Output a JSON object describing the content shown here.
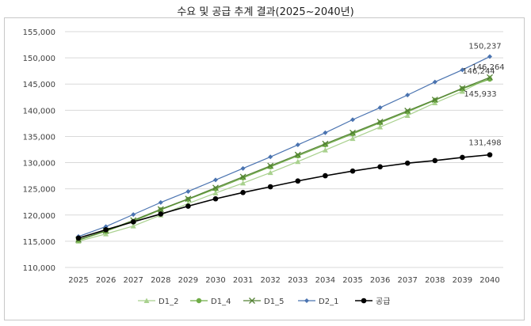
{
  "chart_data": {
    "type": "line",
    "title": "수요 및 공급 추계 결과(2025~2040년)",
    "xlabel": "",
    "ylabel": "",
    "ylim": [
      110000,
      155000
    ],
    "ytick_step": 5000,
    "ytick_labels": [
      "110,000",
      "115,000",
      "120,000",
      "125,000",
      "130,000",
      "135,000",
      "140,000",
      "145,000",
      "150,000",
      "155,000"
    ],
    "grid": true,
    "legend_position": "bottom",
    "categories": [
      "2025",
      "2026",
      "2027",
      "2028",
      "2029",
      "2030",
      "2031",
      "2032",
      "2033",
      "2034",
      "2035",
      "2036",
      "2037",
      "2038",
      "2039",
      "2040"
    ],
    "series": [
      {
        "name": "D1_2",
        "color": "#a9d18e",
        "marker": "triangle",
        "values": [
          115000,
          116400,
          117900,
          120000,
          122200,
          124200,
          126100,
          128100,
          130200,
          132400,
          134600,
          136800,
          139000,
          141400,
          143600,
          146244
        ]
      },
      {
        "name": "D1_4",
        "color": "#70ad47",
        "marker": "circle",
        "values": [
          115200,
          116900,
          118800,
          121000,
          123000,
          125000,
          127100,
          129200,
          131300,
          133400,
          135500,
          137600,
          139700,
          141900,
          144100,
          145933
        ]
      },
      {
        "name": "D1_5",
        "color": "#548235",
        "marker": "x",
        "values": [
          115300,
          117000,
          119000,
          121100,
          123100,
          125200,
          127300,
          129400,
          131500,
          133600,
          135700,
          137800,
          139900,
          142000,
          144200,
          146264
        ]
      },
      {
        "name": "D2_1",
        "color": "#4a73b0",
        "marker": "diamond",
        "values": [
          115900,
          117800,
          120100,
          122400,
          124500,
          126700,
          128900,
          131100,
          133400,
          135700,
          138200,
          140500,
          142900,
          145400,
          147700,
          150237
        ]
      },
      {
        "name": "공급",
        "color": "#000000",
        "marker": "dot",
        "values": [
          115600,
          117200,
          118700,
          120200,
          121700,
          123100,
          124300,
          125400,
          126500,
          127500,
          128400,
          129200,
          129900,
          130400,
          131000,
          131498
        ]
      }
    ],
    "annotations": [
      {
        "series": "D2_1",
        "index": 15,
        "text": "150,237"
      },
      {
        "series": "D1_5",
        "index": 15,
        "text": "146,264"
      },
      {
        "series": "D1_2",
        "index": 15,
        "text": "146,244"
      },
      {
        "series": "D1_4",
        "index": 15,
        "text": "145,933"
      },
      {
        "series": "공급",
        "index": 15,
        "text": "131,498"
      }
    ]
  }
}
